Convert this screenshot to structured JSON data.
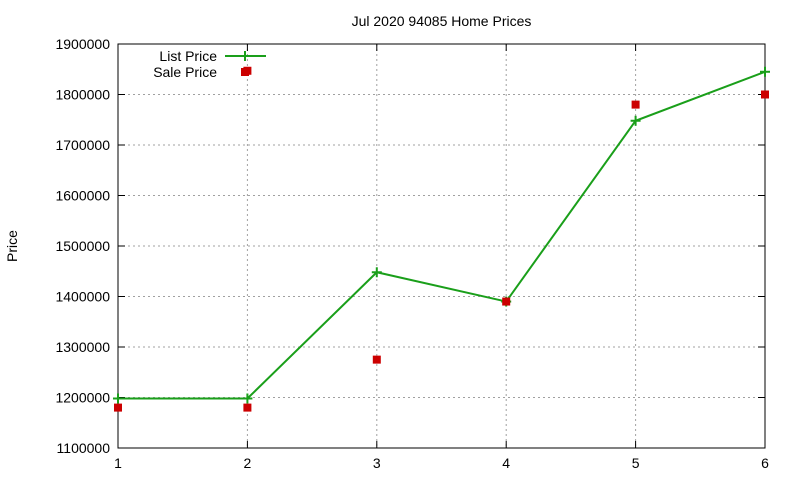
{
  "chart_data": {
    "type": "line",
    "title": "Jul 2020 94085 Home Prices",
    "xlabel": "",
    "ylabel": "Price",
    "xlim": [
      1,
      6
    ],
    "ylim": [
      1100000,
      1900000
    ],
    "xticks": [
      "1",
      "2",
      "3",
      "4",
      "5",
      "6"
    ],
    "yticks": [
      "1100000",
      "1200000",
      "1300000",
      "1400000",
      "1500000",
      "1600000",
      "1700000",
      "1800000",
      "1900000"
    ],
    "grid": true,
    "legend_position": "top-left",
    "series": [
      {
        "name": "List Price",
        "style": "line-cross",
        "color": "#1a9f1a",
        "points": [
          {
            "x": 1,
            "y": 1198000
          },
          {
            "x": 2,
            "y": 1198000
          },
          {
            "x": 3,
            "y": 1448000
          },
          {
            "x": 4,
            "y": 1390000
          },
          {
            "x": 5,
            "y": 1748000
          },
          {
            "x": 6,
            "y": 1845000
          }
        ]
      },
      {
        "name": "Sale Price",
        "style": "square",
        "color": "#cc0000",
        "points": [
          {
            "x": 1,
            "y": 1180000
          },
          {
            "x": 2,
            "y": 1180000
          },
          {
            "x": 2,
            "y": 1847000
          },
          {
            "x": 3,
            "y": 1275000
          },
          {
            "x": 4,
            "y": 1390000
          },
          {
            "x": 5,
            "y": 1780000
          },
          {
            "x": 6,
            "y": 1800000
          }
        ]
      }
    ]
  }
}
